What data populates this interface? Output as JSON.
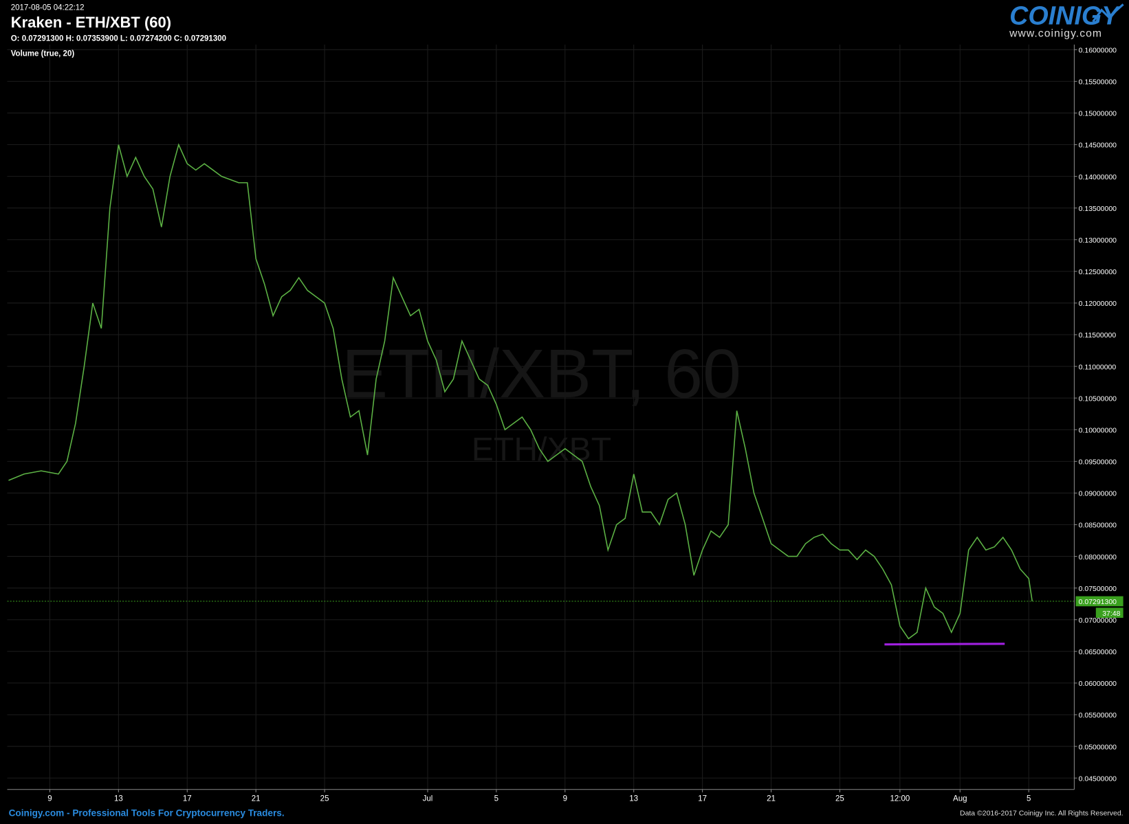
{
  "header": {
    "timestamp": "2017-08-05 04:22:12",
    "title": "Kraken - ETH/XBT (60)",
    "ohlc": "O: 0.07291300 H: 0.07353900 L: 0.07274200 C: 0.07291300",
    "indicator": "Volume (true, 20)",
    "logo": "COINIGY",
    "logo_url": "www.coinigy.com"
  },
  "footer": {
    "left": "Coinigy.com - Professional Tools For Cryptocurrency Traders.",
    "right": "Data ©2016-2017 Coinigy Inc. All Rights Reserved."
  },
  "chart_data": {
    "type": "line",
    "watermark": "ETH/XBT, 60",
    "watermark_sub": "ETH/XBT",
    "color": "#5db345",
    "x": [
      6.6,
      7.5,
      8.5,
      9.5,
      10,
      10.5,
      11,
      11.5,
      12,
      12.5,
      13,
      13.5,
      14,
      14.5,
      15,
      15.5,
      16,
      16.5,
      17,
      17.5,
      18,
      18.5,
      19,
      20,
      20.5,
      21,
      21.5,
      22,
      22.5,
      23,
      23.5,
      24,
      24.5,
      25,
      25.5,
      26,
      26.5,
      27,
      27.5,
      28,
      28.5,
      29,
      29.5,
      30,
      30.5,
      31,
      31.5,
      32,
      32.5,
      33,
      33.5,
      34,
      34.5,
      35,
      35.5,
      36,
      36.5,
      37,
      37.5,
      38,
      38.5,
      39,
      39.5,
      40,
      40.5,
      41,
      41.5,
      42,
      42.5,
      43,
      43.5,
      44,
      44.5,
      45,
      45.5,
      46,
      46.5,
      47,
      47.5,
      48,
      48.5,
      49,
      49.5,
      50,
      50.5,
      51,
      51.5,
      52,
      52.5,
      53,
      53.5,
      54,
      54.5,
      55,
      55.5,
      56,
      56.5,
      57,
      57.5,
      58,
      58.5,
      59,
      59.5,
      60,
      60.5,
      61,
      61.5,
      62,
      62.5,
      63,
      63.5,
      64,
      64.5,
      65,
      65.5,
      66,
      66.2
    ],
    "values": [
      0.092,
      0.093,
      0.0935,
      0.093,
      0.095,
      0.101,
      0.11,
      0.12,
      0.116,
      0.135,
      0.145,
      0.14,
      0.143,
      0.14,
      0.138,
      0.132,
      0.14,
      0.145,
      0.142,
      0.141,
      0.142,
      0.141,
      0.14,
      0.139,
      0.139,
      0.127,
      0.123,
      0.118,
      0.121,
      0.122,
      0.124,
      0.122,
      0.121,
      0.12,
      0.116,
      0.108,
      0.102,
      0.103,
      0.096,
      0.108,
      0.114,
      0.124,
      0.121,
      0.118,
      0.119,
      0.114,
      0.111,
      0.106,
      0.108,
      0.114,
      0.111,
      0.108,
      0.107,
      0.104,
      0.1,
      0.101,
      0.102,
      0.1,
      0.097,
      0.095,
      0.096,
      0.097,
      0.096,
      0.095,
      0.091,
      0.088,
      0.081,
      0.085,
      0.086,
      0.093,
      0.087,
      0.087,
      0.085,
      0.089,
      0.09,
      0.085,
      0.077,
      0.081,
      0.084,
      0.083,
      0.085,
      0.103,
      0.097,
      0.09,
      0.086,
      0.082,
      0.081,
      0.08,
      0.08,
      0.082,
      0.083,
      0.0835,
      0.082,
      0.081,
      0.081,
      0.0795,
      0.081,
      0.08,
      0.078,
      0.0755,
      0.069,
      0.067,
      0.068,
      0.075,
      0.072,
      0.071,
      0.068,
      0.071,
      0.081,
      0.083,
      0.081,
      0.0815,
      0.083,
      0.081,
      0.078,
      0.0765,
      0.072913
    ],
    "xlim": [
      6.52,
      68.65
    ],
    "ylim": [
      0.0432,
      0.1608
    ],
    "xticks": [
      9,
      13,
      17,
      21,
      25,
      {
        "value": 31,
        "label": "Jul"
      },
      {
        "value": 35,
        "label": "5"
      },
      {
        "value": 39,
        "label": "9"
      },
      {
        "value": 43,
        "label": "13"
      },
      {
        "value": 47,
        "label": "17"
      },
      {
        "value": 51,
        "label": "21"
      },
      {
        "value": 55,
        "label": "25"
      },
      {
        "value": 58.5,
        "label": "12:00"
      },
      {
        "value": 62,
        "label": "Aug"
      },
      {
        "value": 66,
        "label": "5"
      }
    ],
    "yticks": [
      {
        "value": 0.045,
        "label": "0.04500000"
      },
      {
        "value": 0.05,
        "label": "0.05000000"
      },
      {
        "value": 0.055,
        "label": "0.05500000"
      },
      {
        "value": 0.06,
        "label": "0.06000000"
      },
      {
        "value": 0.065,
        "label": "0.06500000"
      },
      {
        "value": 0.07,
        "label": "0.07000000"
      },
      {
        "value": 0.075,
        "label": "0.07500000"
      },
      {
        "value": 0.08,
        "label": "0.08000000"
      },
      {
        "value": 0.085,
        "label": "0.08500000"
      },
      {
        "value": 0.09,
        "label": "0.09000000"
      },
      {
        "value": 0.095,
        "label": "0.09500000"
      },
      {
        "value": 0.1,
        "label": "0.10000000"
      },
      {
        "value": 0.105,
        "label": "0.10500000"
      },
      {
        "value": 0.11,
        "label": "0.11000000"
      },
      {
        "value": 0.115,
        "label": "0.11500000"
      },
      {
        "value": 0.12,
        "label": "0.12000000"
      },
      {
        "value": 0.125,
        "label": "0.12500000"
      },
      {
        "value": 0.13,
        "label": "0.13000000"
      },
      {
        "value": 0.135,
        "label": "0.13500000"
      },
      {
        "value": 0.14,
        "label": "0.14000000"
      },
      {
        "value": 0.145,
        "label": "0.14500000"
      },
      {
        "value": 0.15,
        "label": "0.15000000"
      },
      {
        "value": 0.155,
        "label": "0.15500000"
      },
      {
        "value": 0.16,
        "label": "0.16000000"
      }
    ],
    "grid": true,
    "last_price": {
      "value": 0.072913,
      "label": "0.07291300",
      "countdown": "37:48",
      "color": "#3aa01e"
    },
    "support_line": {
      "x": [
        57.6,
        64.6
      ],
      "values": [
        0.0661,
        0.0662
      ],
      "color": "#a020e0"
    }
  }
}
